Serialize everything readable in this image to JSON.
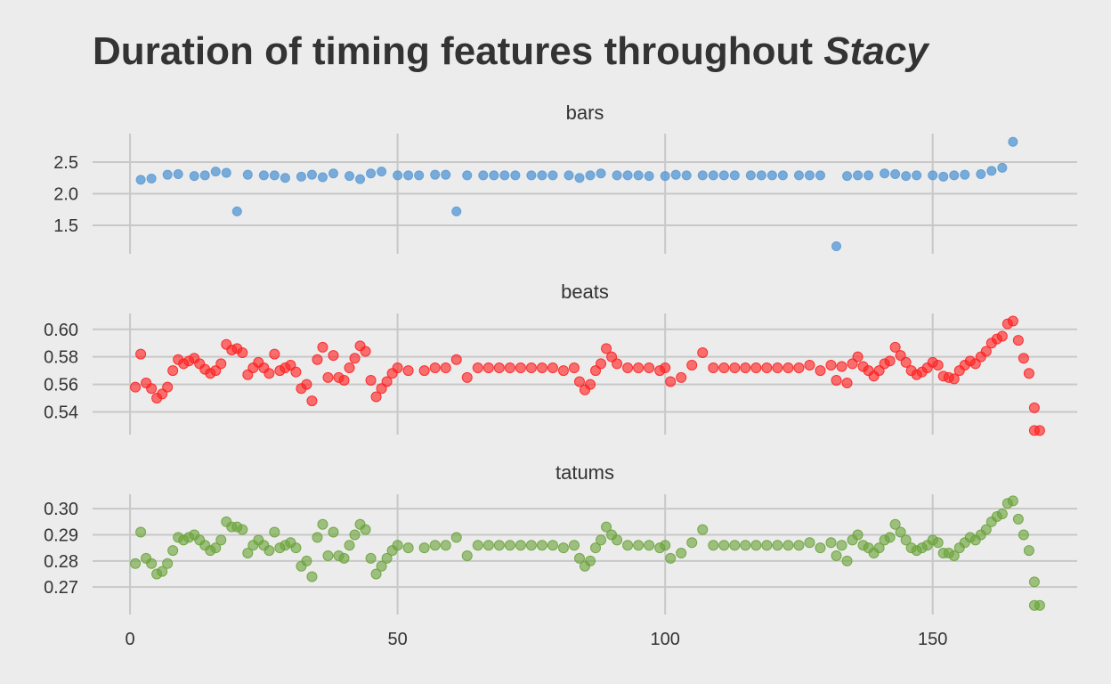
{
  "chart_data": {
    "type": "scatter",
    "title": "Duration of timing features throughout ",
    "title_emphasis": "Stacy",
    "xlabel": "",
    "ylabel": "",
    "x_ticks": [
      0,
      50,
      100,
      150
    ],
    "xlim": [
      -7,
      177
    ],
    "grid": true,
    "panels": [
      {
        "name": "bars",
        "color": "#5b9bd5",
        "ylim": [
          1.05,
          2.95
        ],
        "y_ticks": [
          1.5,
          2.0,
          2.5
        ],
        "y_tick_labels": [
          "1.5",
          "2.0",
          "2.5"
        ],
        "x": [
          2,
          4,
          7,
          9,
          12,
          14,
          16,
          18,
          20,
          22,
          25,
          27,
          29,
          32,
          34,
          36,
          38,
          41,
          43,
          45,
          47,
          50,
          52,
          54,
          57,
          59,
          61,
          63,
          66,
          68,
          70,
          72,
          75,
          77,
          79,
          82,
          84,
          86,
          88,
          91,
          93,
          95,
          97,
          100,
          102,
          104,
          107,
          109,
          111,
          113,
          116,
          118,
          120,
          122,
          125,
          127,
          129,
          132,
          134,
          136,
          138,
          141,
          143,
          145,
          147,
          150,
          152,
          154,
          156,
          159,
          161,
          163,
          165
        ],
        "y": [
          2.22,
          2.24,
          2.3,
          2.31,
          2.28,
          2.29,
          2.35,
          2.33,
          1.72,
          2.3,
          2.29,
          2.29,
          2.25,
          2.27,
          2.3,
          2.26,
          2.32,
          2.28,
          2.23,
          2.32,
          2.35,
          2.29,
          2.29,
          2.29,
          2.3,
          2.3,
          1.72,
          2.29,
          2.29,
          2.29,
          2.29,
          2.29,
          2.29,
          2.29,
          2.29,
          2.29,
          2.25,
          2.29,
          2.32,
          2.29,
          2.29,
          2.29,
          2.28,
          2.28,
          2.3,
          2.29,
          2.29,
          2.29,
          2.29,
          2.29,
          2.29,
          2.29,
          2.29,
          2.29,
          2.29,
          2.29,
          2.29,
          1.17,
          2.28,
          2.29,
          2.29,
          2.32,
          2.31,
          2.28,
          2.29,
          2.29,
          2.27,
          2.29,
          2.3,
          2.31,
          2.36,
          2.41,
          2.82
        ]
      },
      {
        "name": "beats",
        "color": "#ff2020",
        "ylim": [
          0.5235,
          0.6115
        ],
        "y_ticks": [
          0.54,
          0.56,
          0.58,
          0.6
        ],
        "y_tick_labels": [
          "0.54",
          "0.56",
          "0.58",
          "0.60"
        ],
        "x": [
          1,
          2,
          3,
          4,
          5,
          6,
          7,
          8,
          9,
          10,
          11,
          12,
          13,
          14,
          15,
          16,
          17,
          18,
          19,
          20,
          21,
          22,
          23,
          24,
          25,
          26,
          27,
          28,
          29,
          30,
          31,
          32,
          33,
          34,
          35,
          36,
          37,
          38,
          39,
          40,
          41,
          42,
          43,
          44,
          45,
          46,
          47,
          48,
          49,
          50,
          52,
          55,
          57,
          59,
          61,
          63,
          65,
          67,
          69,
          71,
          73,
          75,
          77,
          79,
          81,
          83,
          84,
          85,
          86,
          87,
          88,
          89,
          90,
          91,
          93,
          95,
          97,
          99,
          100,
          101,
          103,
          105,
          107,
          109,
          111,
          113,
          115,
          117,
          119,
          121,
          123,
          125,
          127,
          129,
          131,
          132,
          133,
          134,
          135,
          136,
          137,
          138,
          139,
          140,
          141,
          142,
          143,
          144,
          145,
          146,
          147,
          148,
          149,
          150,
          151,
          152,
          153,
          154,
          155,
          156,
          157,
          158,
          159,
          160,
          161,
          162,
          163,
          164,
          165,
          166,
          167,
          168,
          169
        ],
        "y": [
          0.558,
          0.582,
          0.561,
          0.557,
          0.55,
          0.553,
          0.558,
          0.57,
          0.578,
          0.575,
          0.577,
          0.579,
          0.575,
          0.571,
          0.568,
          0.57,
          0.575,
          0.589,
          0.585,
          0.586,
          0.583,
          0.567,
          0.572,
          0.576,
          0.572,
          0.568,
          0.582,
          0.57,
          0.572,
          0.574,
          0.569,
          0.557,
          0.56,
          0.548,
          0.578,
          0.587,
          0.565,
          0.581,
          0.565,
          0.563,
          0.572,
          0.579,
          0.588,
          0.584,
          0.563,
          0.551,
          0.557,
          0.562,
          0.568,
          0.572,
          0.57,
          0.57,
          0.572,
          0.572,
          0.578,
          0.565,
          0.572,
          0.572,
          0.572,
          0.572,
          0.572,
          0.572,
          0.572,
          0.572,
          0.57,
          0.572,
          0.562,
          0.556,
          0.56,
          0.57,
          0.575,
          0.586,
          0.58,
          0.575,
          0.572,
          0.572,
          0.572,
          0.57,
          0.572,
          0.562,
          0.565,
          0.574,
          0.583,
          0.572,
          0.572,
          0.572,
          0.572,
          0.572,
          0.572,
          0.572,
          0.572,
          0.572,
          0.574,
          0.57,
          0.574,
          0.563,
          0.573,
          0.561,
          0.575,
          0.58,
          0.573,
          0.57,
          0.566,
          0.57,
          0.575,
          0.577,
          0.587,
          0.581,
          0.576,
          0.57,
          0.567,
          0.569,
          0.572,
          0.576,
          0.574,
          0.566,
          0.565,
          0.564,
          0.57,
          0.574,
          0.577,
          0.575,
          0.58,
          0.584,
          0.59,
          0.593,
          0.595,
          0.604,
          0.606,
          0.592,
          0.579,
          0.568,
          0.543
        ],
        "extra_x": [
          169,
          170
        ],
        "extra_y": [
          0.5265,
          0.5265
        ]
      },
      {
        "name": "tatums",
        "color": "#6aa33a",
        "ylim": [
          0.2595,
          0.3055
        ],
        "y_ticks": [
          0.27,
          0.28,
          0.29,
          0.3
        ],
        "y_tick_labels": [
          "0.27",
          "0.28",
          "0.29",
          "0.30"
        ],
        "x": [
          1,
          2,
          3,
          4,
          5,
          6,
          7,
          8,
          9,
          10,
          11,
          12,
          13,
          14,
          15,
          16,
          17,
          18,
          19,
          20,
          21,
          22,
          23,
          24,
          25,
          26,
          27,
          28,
          29,
          30,
          31,
          32,
          33,
          34,
          35,
          36,
          37,
          38,
          39,
          40,
          41,
          42,
          43,
          44,
          45,
          46,
          47,
          48,
          49,
          50,
          52,
          55,
          57,
          59,
          61,
          63,
          65,
          67,
          69,
          71,
          73,
          75,
          77,
          79,
          81,
          83,
          84,
          85,
          86,
          87,
          88,
          89,
          90,
          91,
          93,
          95,
          97,
          99,
          100,
          101,
          103,
          105,
          107,
          109,
          111,
          113,
          115,
          117,
          119,
          121,
          123,
          125,
          127,
          129,
          131,
          132,
          133,
          134,
          135,
          136,
          137,
          138,
          139,
          140,
          141,
          142,
          143,
          144,
          145,
          146,
          147,
          148,
          149,
          150,
          151,
          152,
          153,
          154,
          155,
          156,
          157,
          158,
          159,
          160,
          161,
          162,
          163,
          164,
          165,
          166,
          167,
          168,
          169
        ],
        "y": [
          0.279,
          0.291,
          0.281,
          0.279,
          0.275,
          0.276,
          0.279,
          0.284,
          0.289,
          0.288,
          0.289,
          0.29,
          0.288,
          0.286,
          0.284,
          0.285,
          0.288,
          0.295,
          0.293,
          0.293,
          0.292,
          0.283,
          0.286,
          0.288,
          0.286,
          0.284,
          0.291,
          0.285,
          0.286,
          0.287,
          0.285,
          0.278,
          0.28,
          0.274,
          0.289,
          0.294,
          0.282,
          0.291,
          0.282,
          0.281,
          0.286,
          0.29,
          0.294,
          0.292,
          0.281,
          0.275,
          0.278,
          0.281,
          0.284,
          0.286,
          0.285,
          0.285,
          0.286,
          0.286,
          0.289,
          0.282,
          0.286,
          0.286,
          0.286,
          0.286,
          0.286,
          0.286,
          0.286,
          0.286,
          0.285,
          0.286,
          0.281,
          0.278,
          0.28,
          0.285,
          0.288,
          0.293,
          0.29,
          0.288,
          0.286,
          0.286,
          0.286,
          0.285,
          0.286,
          0.281,
          0.283,
          0.287,
          0.292,
          0.286,
          0.286,
          0.286,
          0.286,
          0.286,
          0.286,
          0.286,
          0.286,
          0.286,
          0.287,
          0.285,
          0.287,
          0.282,
          0.286,
          0.28,
          0.288,
          0.29,
          0.286,
          0.285,
          0.283,
          0.285,
          0.288,
          0.289,
          0.294,
          0.291,
          0.288,
          0.285,
          0.284,
          0.285,
          0.286,
          0.288,
          0.287,
          0.283,
          0.283,
          0.282,
          0.285,
          0.287,
          0.289,
          0.288,
          0.29,
          0.292,
          0.295,
          0.297,
          0.298,
          0.302,
          0.303,
          0.296,
          0.29,
          0.284,
          0.272
        ],
        "extra_x": [
          169,
          170
        ],
        "extra_y": [
          0.263,
          0.263
        ]
      }
    ]
  }
}
